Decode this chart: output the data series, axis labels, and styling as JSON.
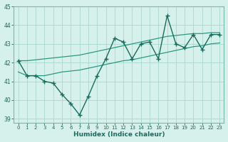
{
  "xlabel": "Humidex (Indice chaleur)",
  "x": [
    0,
    1,
    2,
    3,
    4,
    5,
    6,
    7,
    8,
    9,
    10,
    11,
    12,
    13,
    14,
    15,
    16,
    17,
    18,
    19,
    20,
    21,
    22,
    23
  ],
  "series_main": [
    42.1,
    41.3,
    41.3,
    41.0,
    40.9,
    40.3,
    39.8,
    39.2,
    40.2,
    41.3,
    42.2,
    43.3,
    43.1,
    42.2,
    43.0,
    43.1,
    42.2,
    44.5,
    43.0,
    42.8,
    43.5,
    42.7,
    43.5,
    43.5
  ],
  "series_low": [
    41.5,
    41.3,
    41.3,
    41.3,
    41.4,
    41.5,
    41.55,
    41.6,
    41.7,
    41.8,
    41.9,
    42.0,
    42.1,
    42.15,
    42.25,
    42.35,
    42.45,
    42.55,
    42.65,
    42.75,
    42.85,
    42.9,
    43.0,
    43.05
  ],
  "series_high": [
    42.1,
    42.1,
    42.15,
    42.2,
    42.25,
    42.3,
    42.35,
    42.4,
    42.5,
    42.6,
    42.7,
    42.8,
    42.9,
    43.0,
    43.1,
    43.2,
    43.3,
    43.4,
    43.45,
    43.5,
    43.55,
    43.55,
    43.6,
    43.6
  ],
  "line_color_main": "#1a6b5e",
  "line_color_band": "#2a9980",
  "bg_color": "#d6f0ec",
  "grid_color": "#a8d8d0",
  "text_color": "#1a6b5e",
  "spine_color": "#7ab8b0",
  "ylim": [
    38.8,
    45.0
  ],
  "yticks": [
    39,
    40,
    41,
    42,
    43,
    44,
    45
  ],
  "marker": "+",
  "marker_size": 5,
  "linewidth_main": 1.0,
  "linewidth_band": 0.9
}
